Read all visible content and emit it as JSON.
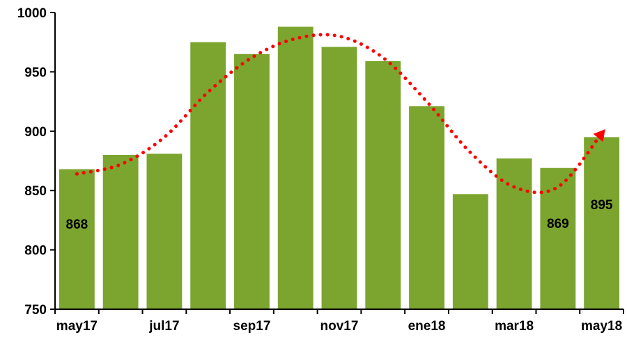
{
  "chart_data": {
    "type": "bar",
    "categories": [
      "may17",
      "jun17",
      "jul17",
      "ago17",
      "sep17",
      "oct17",
      "nov17",
      "dic17",
      "ene18",
      "feb18",
      "mar18",
      "abr18",
      "may18"
    ],
    "x_tick_labels": [
      "may17",
      "jul17",
      "sep17",
      "nov17",
      "ene18",
      "mar18",
      "may18"
    ],
    "x_tick_categories": [
      "may17",
      "jul17",
      "sep17",
      "nov17",
      "ene18",
      "mar18",
      "may18"
    ],
    "series": [
      {
        "type": "bar",
        "values": [
          868,
          880,
          881,
          975,
          965,
          988,
          971,
          959,
          921,
          847,
          877,
          869,
          895
        ],
        "color": "#7ba52e"
      },
      {
        "type": "trend-line",
        "style": "dotted",
        "values": [
          864,
          872,
          895,
          933,
          962,
          978,
          980,
          962,
          925,
          882,
          853,
          853,
          898
        ],
        "color": "#ff0000",
        "end_marker": "triangle"
      }
    ],
    "data_labels": [
      {
        "category": "may17",
        "text": "868"
      },
      {
        "category": "abr18",
        "text": "869"
      },
      {
        "category": "may18",
        "text": "895"
      }
    ],
    "ylim": [
      750,
      1000
    ],
    "y_ticks": [
      750,
      800,
      850,
      900,
      950,
      1000
    ],
    "y_tick_labels": [
      "750",
      "800",
      "850",
      "900",
      "950",
      "1000"
    ],
    "title": "",
    "xlabel": "",
    "ylabel": "",
    "grid": false,
    "legend": "none"
  }
}
